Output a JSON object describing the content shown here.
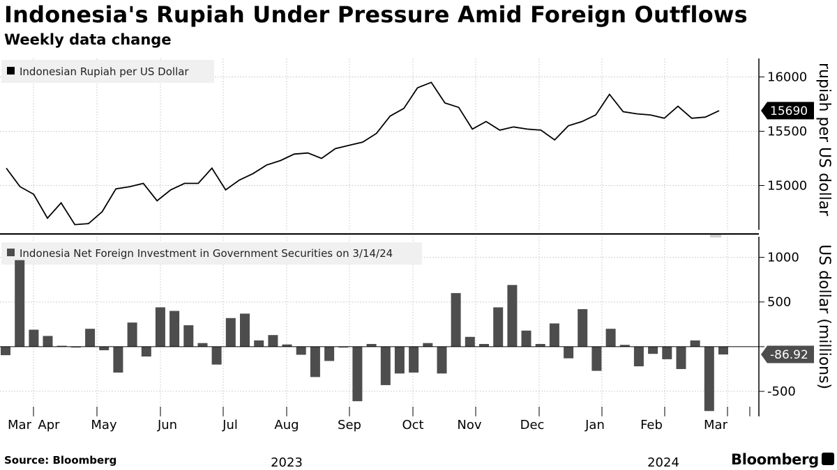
{
  "header": {
    "title": "Indonesia's Rupiah Under Pressure Amid Foreign Outflows",
    "subtitle": "Weekly data change"
  },
  "footer": {
    "source": "Source: Bloomberg",
    "brand": "Bloomberg"
  },
  "chart_data": [
    {
      "type": "line",
      "legend": "Indonesian Rupiah per US Dollar",
      "ylabel": "rupiah per US dollar",
      "ylim": [
        14580,
        16170
      ],
      "yticks": [
        "15000",
        "15500",
        "16000"
      ],
      "callout": "15690",
      "color": "#000000",
      "grid": true,
      "values": [
        15160,
        14990,
        14920,
        14700,
        14840,
        14640,
        14650,
        14760,
        14970,
        14990,
        15020,
        14860,
        14960,
        15020,
        15020,
        15160,
        14960,
        15050,
        15110,
        15190,
        15230,
        15290,
        15300,
        15250,
        15340,
        15370,
        15400,
        15480,
        15640,
        15710,
        15900,
        15950,
        15760,
        15720,
        15520,
        15590,
        15510,
        15540,
        15520,
        15510,
        15420,
        15550,
        15590,
        15650,
        15840,
        15680,
        15660,
        15650,
        15620,
        15730,
        15620,
        15630,
        15690
      ]
    },
    {
      "type": "bar",
      "legend": "Indonesia Net Foreign Investment in Government Securities on 3/14/24",
      "ylabel": "US dollar (millions)",
      "ylim": [
        -780,
        1230
      ],
      "yticks": [
        "-500",
        "500",
        "1000"
      ],
      "callout": "-86.92",
      "color": "#4d4d4d",
      "grid": true,
      "values": [
        -95,
        968,
        190,
        120,
        10,
        -5,
        200,
        -40,
        -290,
        270,
        -110,
        440,
        400,
        240,
        40,
        -200,
        320,
        370,
        70,
        130,
        25,
        -90,
        -340,
        -160,
        -5,
        -610,
        30,
        -430,
        -300,
        -290,
        40,
        -300,
        600,
        110,
        30,
        440,
        690,
        180,
        30,
        260,
        -130,
        420,
        -270,
        200,
        20,
        -220,
        -80,
        -140,
        -250,
        70,
        -720,
        -86.92
      ]
    }
  ],
  "x_axis": {
    "months": [
      "Mar",
      "Apr",
      "May",
      "Jun",
      "Jul",
      "Aug",
      "Sep",
      "Oct",
      "Nov",
      "Dec",
      "Jan",
      "Feb",
      "Mar"
    ],
    "years": [
      "2023",
      "2024"
    ]
  }
}
